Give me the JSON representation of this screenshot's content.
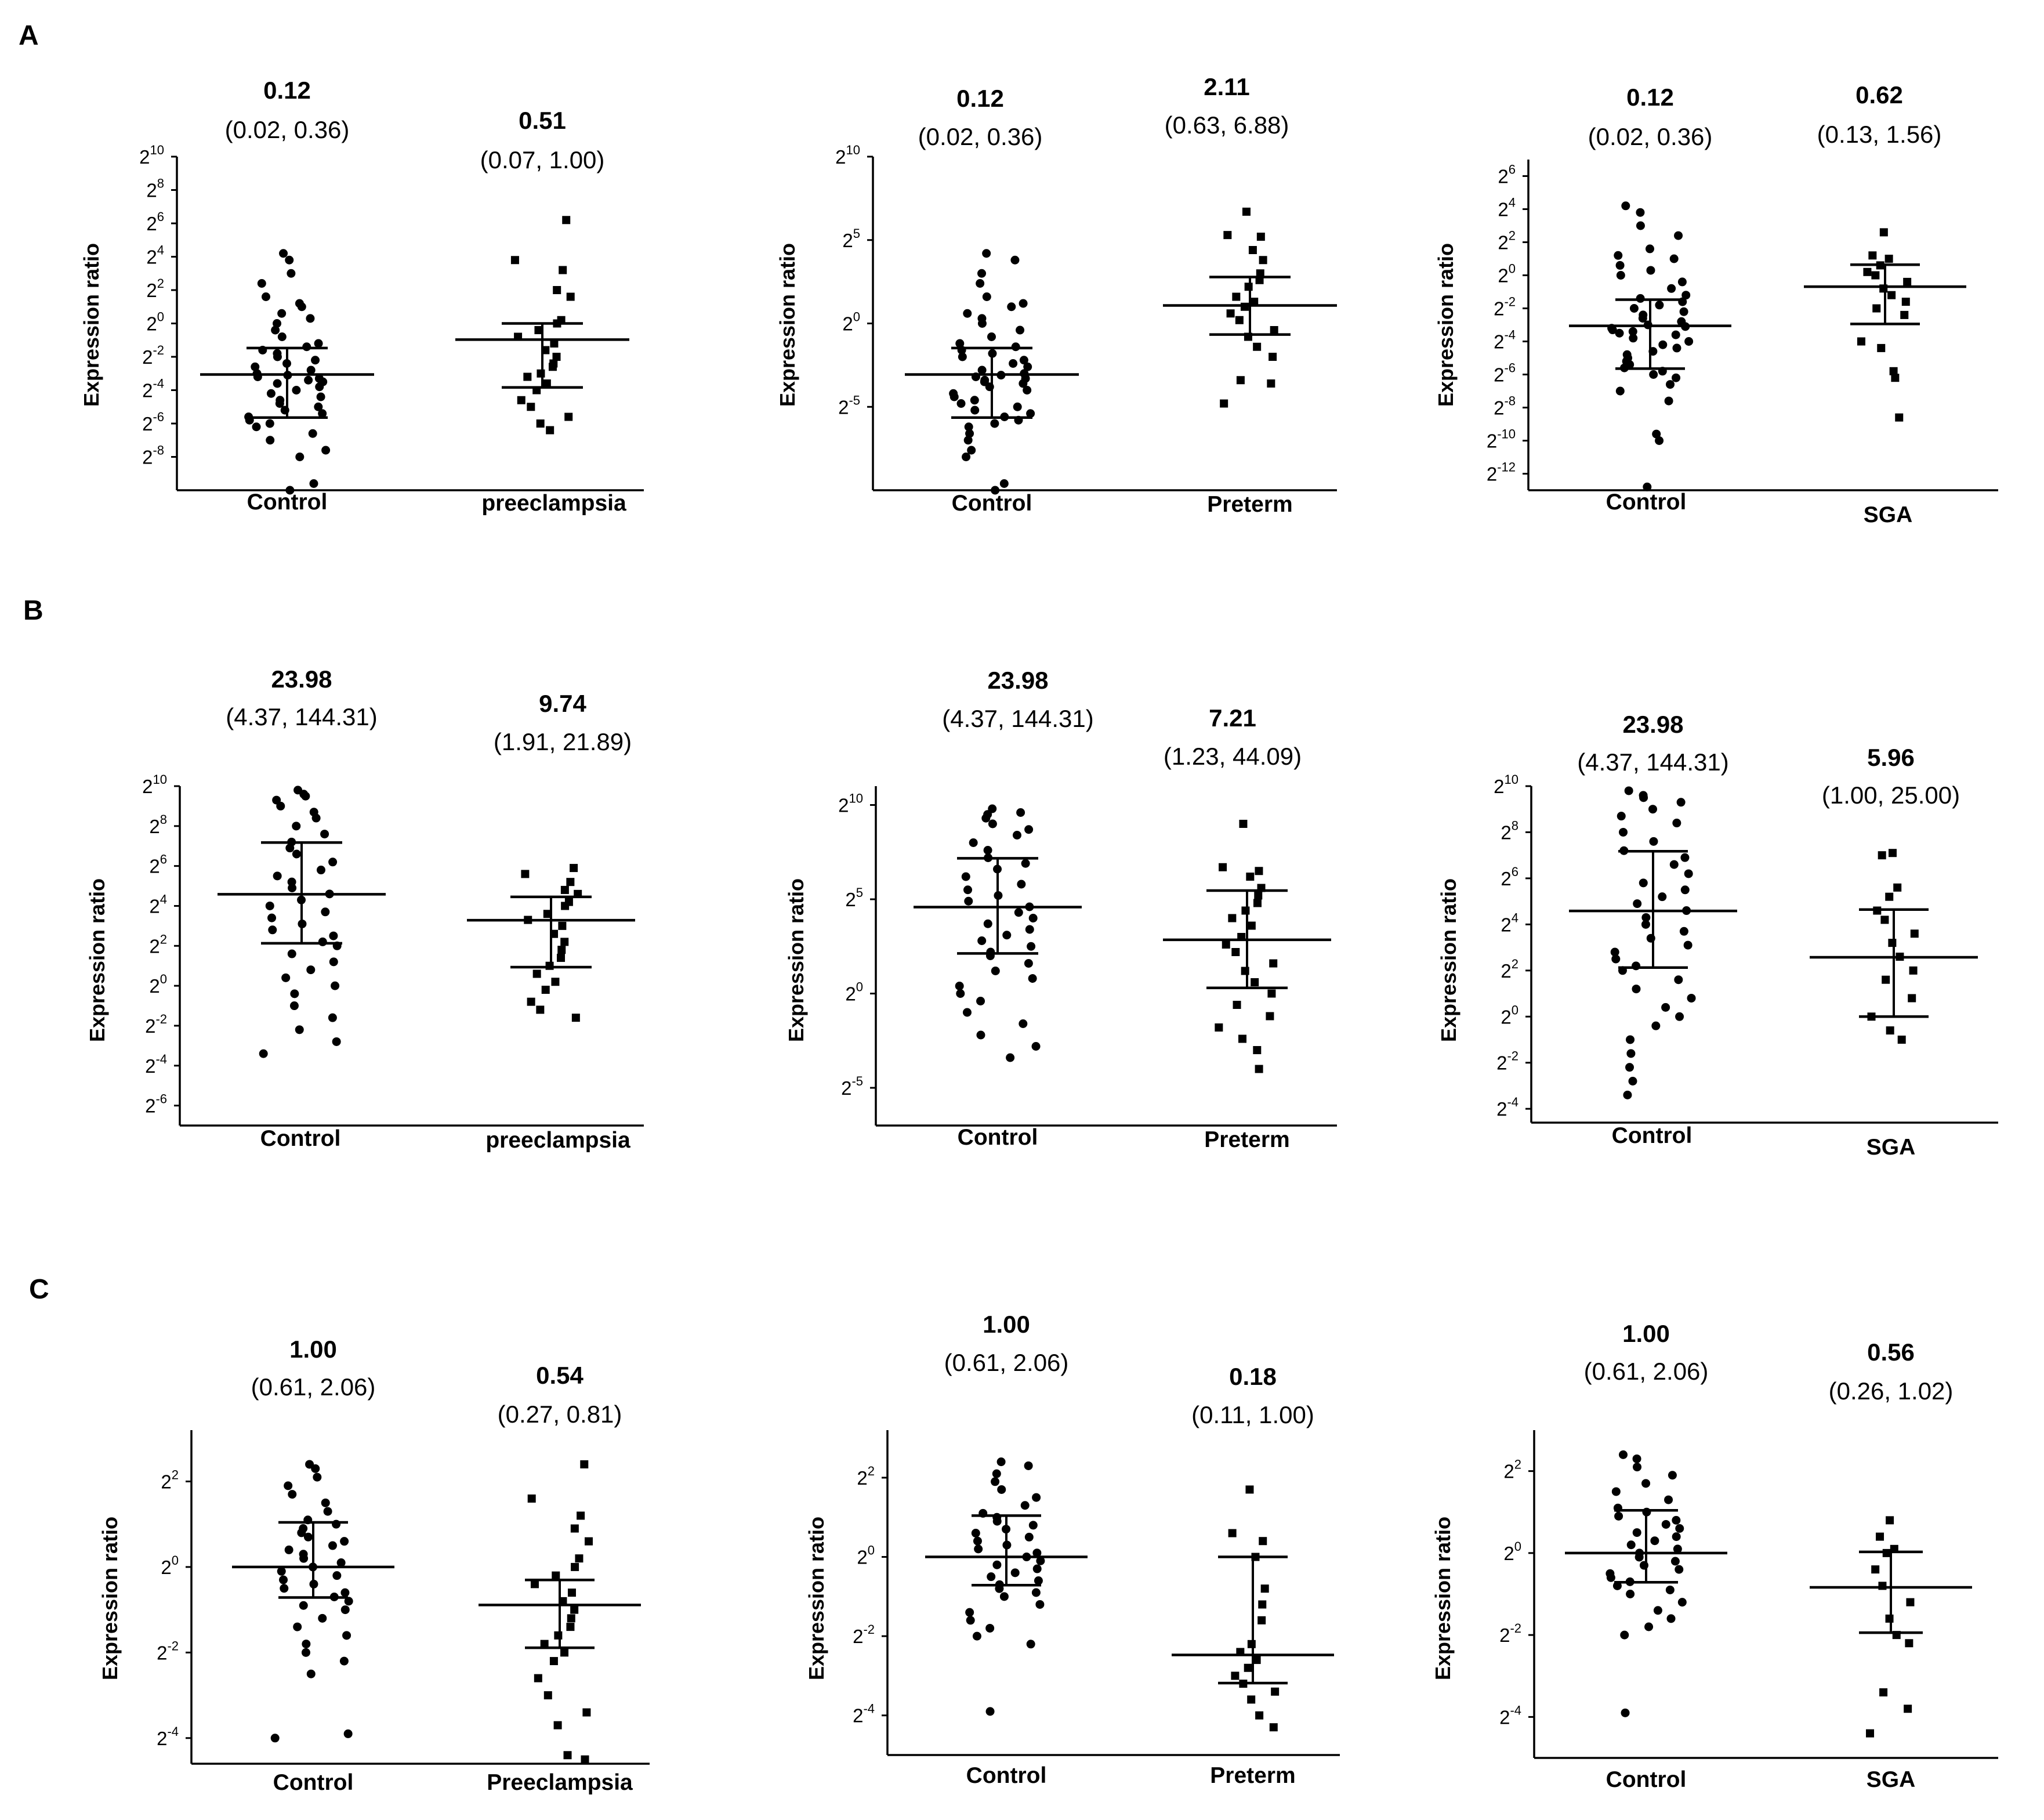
{
  "panels": {
    "A": "A",
    "B": "B",
    "C": "C"
  },
  "chart_data": [
    {
      "id": "A1",
      "type": "scatter",
      "ylabel": "Expression ratio",
      "y_scale": "log2",
      "ylim_exp": [
        -10,
        10
      ],
      "yticks_exp": [
        10,
        8,
        6,
        4,
        2,
        0,
        -2,
        -4,
        -6,
        -8
      ],
      "groups": [
        {
          "label": "Control",
          "median_label": "0.12",
          "iqr_label": "(0.02, 0.36)",
          "median": 0.12,
          "q1": 0.02,
          "q3": 0.36,
          "marker": "circle",
          "points_exp": [
            4.2,
            3.8,
            3.0,
            2.4,
            1.6,
            1.2,
            1.0,
            0.6,
            0.3,
            0.0,
            -0.4,
            -0.8,
            -1.2,
            -1.4,
            -1.6,
            -1.8,
            -2.0,
            -2.2,
            -2.4,
            -2.6,
            -2.8,
            -3.0,
            -3.1,
            -3.2,
            -3.3,
            -3.4,
            -3.5,
            -3.6,
            -3.8,
            -4.0,
            -4.2,
            -4.4,
            -4.6,
            -4.8,
            -5.0,
            -5.2,
            -5.4,
            -5.6,
            -5.8,
            -6.0,
            -6.2,
            -6.6,
            -7.0,
            -7.6,
            -8.0,
            -9.6,
            -10.0
          ]
        },
        {
          "label": "preeclampsia",
          "median_label": "0.51",
          "iqr_label": "(0.07, 1.00)",
          "median": 0.51,
          "q1": 0.07,
          "q3": 1.0,
          "marker": "square",
          "points_exp": [
            6.2,
            3.8,
            3.2,
            2.0,
            1.6,
            0.2,
            0.0,
            -0.4,
            -0.8,
            -1.2,
            -1.6,
            -2.0,
            -2.4,
            -2.6,
            -3.0,
            -3.2,
            -3.6,
            -4.0,
            -4.6,
            -5.0,
            -5.6,
            -6.0,
            -6.4
          ]
        }
      ]
    },
    {
      "id": "A2",
      "type": "scatter",
      "ylabel": "Expression ratio",
      "y_scale": "log2",
      "ylim_exp": [
        -10,
        10
      ],
      "yticks_exp": [
        10,
        5,
        0,
        -5
      ],
      "groups": [
        {
          "label": "Control",
          "median_label": "0.12",
          "iqr_label": "(0.02, 0.36)",
          "median": 0.12,
          "q1": 0.02,
          "q3": 0.36,
          "marker": "circle",
          "points_exp": [
            4.2,
            3.8,
            3.0,
            2.4,
            1.6,
            1.2,
            1.0,
            0.6,
            0.3,
            0.0,
            -0.4,
            -0.8,
            -1.2,
            -1.4,
            -1.6,
            -1.8,
            -2.0,
            -2.2,
            -2.4,
            -2.6,
            -2.8,
            -3.0,
            -3.1,
            -3.2,
            -3.3,
            -3.4,
            -3.5,
            -3.6,
            -3.8,
            -4.0,
            -4.2,
            -4.4,
            -4.6,
            -4.8,
            -5.0,
            -5.2,
            -5.4,
            -5.6,
            -5.8,
            -6.0,
            -6.2,
            -6.6,
            -7.0,
            -7.6,
            -8.0,
            -9.6,
            -10.0
          ]
        },
        {
          "label": "Preterm",
          "median_label": "2.11",
          "iqr_label": "(0.63, 6.88)",
          "median": 2.11,
          "q1": 0.63,
          "q3": 6.88,
          "marker": "square",
          "points_exp": [
            6.7,
            5.3,
            5.2,
            4.4,
            3.8,
            3.0,
            2.6,
            2.2,
            1.6,
            1.3,
            1.0,
            0.6,
            0.2,
            -0.4,
            -0.8,
            -1.4,
            -2.0,
            -3.4,
            -3.6,
            -4.8
          ]
        }
      ]
    },
    {
      "id": "A3",
      "type": "scatter",
      "ylabel": "Expression ratio",
      "y_scale": "log2",
      "ylim_exp": [
        -13,
        7
      ],
      "yticks_exp": [
        6,
        4,
        2,
        0,
        -2,
        -4,
        -6,
        -8,
        -10,
        -12
      ],
      "groups": [
        {
          "label": "Control",
          "median_label": "0.12",
          "iqr_label": "(0.02, 0.36)",
          "median": 0.12,
          "q1": 0.02,
          "q3": 0.36,
          "marker": "circle",
          "points_exp": [
            4.2,
            3.8,
            3.0,
            2.4,
            1.6,
            1.2,
            1.0,
            0.6,
            0.3,
            0.0,
            -0.4,
            -0.8,
            -1.2,
            -1.4,
            -1.6,
            -1.8,
            -2.0,
            -2.2,
            -2.4,
            -2.6,
            -2.8,
            -3.0,
            -3.1,
            -3.2,
            -3.3,
            -3.4,
            -3.5,
            -3.6,
            -3.8,
            -4.0,
            -4.2,
            -4.4,
            -4.6,
            -4.8,
            -5.0,
            -5.2,
            -5.4,
            -5.6,
            -5.8,
            -6.0,
            -6.2,
            -6.6,
            -7.0,
            -7.6,
            -9.6,
            -10.0,
            -12.8
          ]
        },
        {
          "label": "SGA",
          "median_label": "0.62",
          "iqr_label": "(0.13, 1.56)",
          "median": 0.62,
          "q1": 0.13,
          "q3": 1.56,
          "marker": "square",
          "points_exp": [
            2.6,
            1.2,
            1.0,
            0.6,
            0.2,
            0.0,
            -0.4,
            -0.8,
            -1.2,
            -1.6,
            -2.0,
            -2.4,
            -4.0,
            -4.4,
            -5.8,
            -6.2,
            -8.6
          ]
        }
      ]
    },
    {
      "id": "B1",
      "type": "scatter",
      "ylabel": "Expression ratio",
      "y_scale": "log2",
      "ylim_exp": [
        -7,
        10
      ],
      "yticks_exp": [
        10,
        8,
        6,
        4,
        2,
        0,
        -2,
        -4,
        -6
      ],
      "groups": [
        {
          "label": "Control",
          "median_label": "23.98",
          "iqr_label": "(4.37, 144.31)",
          "median": 23.98,
          "q1": 4.37,
          "q3": 144.31,
          "marker": "circle",
          "points_exp": [
            9.8,
            9.6,
            9.5,
            9.3,
            9.0,
            8.7,
            8.4,
            8.0,
            7.6,
            7.2,
            6.9,
            6.6,
            6.2,
            5.8,
            5.5,
            5.2,
            4.9,
            4.6,
            4.3,
            4.0,
            3.7,
            3.4,
            3.1,
            2.8,
            2.5,
            2.2,
            2.0,
            1.6,
            1.2,
            0.8,
            0.4,
            0.0,
            -0.4,
            -1.0,
            -1.6,
            -2.2,
            -2.8,
            -3.4
          ]
        },
        {
          "label": "preeclampsia",
          "median_label": "9.74",
          "iqr_label": "(1.91, 21.89)",
          "median": 9.74,
          "q1": 1.91,
          "q3": 21.89,
          "marker": "square",
          "points_exp": [
            5.9,
            5.6,
            5.2,
            4.8,
            4.6,
            4.2,
            4.0,
            3.6,
            3.3,
            3.0,
            2.6,
            2.2,
            1.8,
            1.4,
            1.0,
            0.6,
            0.2,
            -0.2,
            -0.8,
            -1.2,
            -1.6
          ]
        }
      ]
    },
    {
      "id": "B2",
      "type": "scatter",
      "ylabel": "Expression ratio",
      "y_scale": "log2",
      "ylim_exp": [
        -7,
        11
      ],
      "yticks_exp": [
        10,
        5,
        0,
        -5
      ],
      "groups": [
        {
          "label": "Control",
          "median_label": "23.98",
          "iqr_label": "(4.37, 144.31)",
          "median": 23.98,
          "q1": 4.37,
          "q3": 144.31,
          "marker": "circle",
          "points_exp": [
            9.8,
            9.6,
            9.5,
            9.3,
            9.0,
            8.7,
            8.4,
            8.0,
            7.6,
            7.2,
            6.9,
            6.6,
            6.2,
            5.8,
            5.5,
            5.2,
            4.9,
            4.6,
            4.3,
            4.0,
            3.7,
            3.4,
            3.1,
            2.8,
            2.5,
            2.2,
            2.0,
            1.6,
            1.2,
            0.8,
            0.4,
            0.0,
            -0.4,
            -1.0,
            -1.6,
            -2.2,
            -2.8,
            -3.4
          ]
        },
        {
          "label": "Preterm",
          "median_label": "7.21",
          "iqr_label": "(1.23, 44.09)",
          "median": 7.21,
          "q1": 1.23,
          "q3": 44.09,
          "marker": "square",
          "points_exp": [
            9.0,
            6.7,
            6.5,
            6.2,
            5.6,
            5.2,
            4.8,
            4.4,
            4.0,
            3.6,
            3.0,
            2.6,
            2.2,
            1.6,
            1.2,
            0.6,
            0.0,
            -0.6,
            -1.2,
            -1.8,
            -2.4,
            -3.0,
            -4.0
          ]
        }
      ]
    },
    {
      "id": "B3",
      "type": "scatter",
      "ylabel": "Expression ratio",
      "y_scale": "log2",
      "ylim_exp": [
        -4.6,
        10
      ],
      "yticks_exp": [
        10,
        8,
        6,
        4,
        2,
        0,
        -2,
        -4
      ],
      "groups": [
        {
          "label": "Control",
          "median_label": "23.98",
          "iqr_label": "(4.37, 144.31)",
          "median": 23.98,
          "q1": 4.37,
          "q3": 144.31,
          "marker": "circle",
          "points_exp": [
            9.8,
            9.6,
            9.5,
            9.3,
            9.0,
            8.7,
            8.4,
            8.0,
            7.6,
            7.2,
            6.9,
            6.6,
            6.2,
            5.8,
            5.5,
            5.2,
            4.9,
            4.6,
            4.3,
            4.0,
            3.7,
            3.4,
            3.1,
            2.8,
            2.5,
            2.2,
            2.0,
            1.6,
            1.2,
            0.8,
            0.4,
            0.0,
            -0.4,
            -1.0,
            -1.6,
            -2.2,
            -2.8,
            -3.4
          ]
        },
        {
          "label": "SGA",
          "median_label": "5.96",
          "iqr_label": "(1.00, 25.00)",
          "median": 5.96,
          "q1": 1.0,
          "q3": 25.0,
          "marker": "square",
          "points_exp": [
            7.1,
            7.0,
            5.6,
            5.2,
            4.6,
            4.2,
            3.6,
            3.2,
            2.6,
            2.0,
            1.6,
            0.8,
            0.0,
            -0.6,
            -1.0
          ]
        }
      ]
    },
    {
      "id": "C1",
      "type": "scatter",
      "ylabel": "Expression ratio",
      "y_scale": "log2",
      "ylim_exp": [
        -4.6,
        3.2
      ],
      "yticks_exp": [
        2,
        0,
        -2,
        -4
      ],
      "groups": [
        {
          "label": "Control",
          "median_label": "1.00",
          "iqr_label": "(0.61, 2.06)",
          "median": 1.0,
          "q1": 0.61,
          "q3": 2.06,
          "marker": "circle",
          "points_exp": [
            2.4,
            2.3,
            2.1,
            1.9,
            1.7,
            1.5,
            1.3,
            1.1,
            1.0,
            0.9,
            0.8,
            0.7,
            0.6,
            0.5,
            0.4,
            0.3,
            0.2,
            0.1,
            0.0,
            -0.1,
            -0.2,
            -0.3,
            -0.4,
            -0.5,
            -0.6,
            -0.7,
            -0.8,
            -0.9,
            -1.0,
            -1.2,
            -1.4,
            -1.6,
            -1.8,
            -2.0,
            -2.2,
            -2.5,
            -3.9,
            -4.0
          ]
        },
        {
          "label": "Preeclampsia",
          "median_label": "0.54",
          "iqr_label": "(0.27, 0.81)",
          "median": 0.54,
          "q1": 0.27,
          "q3": 0.81,
          "marker": "square",
          "points_exp": [
            2.4,
            1.6,
            1.2,
            0.9,
            0.6,
            0.2,
            0.0,
            -0.2,
            -0.4,
            -0.6,
            -0.8,
            -1.0,
            -1.2,
            -1.4,
            -1.6,
            -1.8,
            -2.0,
            -2.2,
            -2.6,
            -3.0,
            -3.4,
            -3.7,
            -4.4,
            -4.5
          ]
        }
      ]
    },
    {
      "id": "C2",
      "type": "scatter",
      "ylabel": "Expression ratio",
      "y_scale": "log2",
      "ylim_exp": [
        -5,
        3.2
      ],
      "yticks_exp": [
        2,
        0,
        -2,
        -4
      ],
      "groups": [
        {
          "label": "Control",
          "median_label": "1.00",
          "iqr_label": "(0.61, 2.06)",
          "median": 1.0,
          "q1": 0.61,
          "q3": 2.06,
          "marker": "circle",
          "points_exp": [
            2.4,
            2.3,
            2.1,
            1.9,
            1.7,
            1.5,
            1.3,
            1.1,
            1.0,
            0.9,
            0.8,
            0.7,
            0.6,
            0.5,
            0.4,
            0.3,
            0.2,
            0.1,
            0.0,
            -0.1,
            -0.2,
            -0.3,
            -0.4,
            -0.5,
            -0.6,
            -0.7,
            -0.8,
            -0.9,
            -1.0,
            -1.2,
            -1.4,
            -1.6,
            -1.8,
            -2.0,
            -2.2,
            -3.9
          ]
        },
        {
          "label": "Preterm",
          "median_label": "0.18",
          "iqr_label": "(0.11, 1.00)",
          "median": 0.18,
          "q1": 0.11,
          "q3": 1.0,
          "marker": "square",
          "points_exp": [
            1.7,
            0.6,
            0.4,
            0.0,
            -0.8,
            -1.2,
            -1.6,
            -2.2,
            -2.4,
            -2.6,
            -2.8,
            -3.0,
            -3.2,
            -3.4,
            -3.6,
            -4.0,
            -4.3
          ]
        }
      ]
    },
    {
      "id": "C3",
      "type": "scatter",
      "ylabel": "Expression ratio",
      "y_scale": "log2",
      "ylim_exp": [
        -5,
        3
      ],
      "yticks_exp": [
        2,
        0,
        -2,
        -4
      ],
      "groups": [
        {
          "label": "Control",
          "median_label": "1.00",
          "iqr_label": "(0.61, 2.06)",
          "median": 1.0,
          "q1": 0.61,
          "q3": 2.06,
          "marker": "circle",
          "points_exp": [
            2.4,
            2.3,
            2.1,
            1.9,
            1.7,
            1.5,
            1.3,
            1.1,
            1.0,
            0.9,
            0.8,
            0.7,
            0.6,
            0.5,
            0.4,
            0.3,
            0.2,
            0.1,
            0.0,
            -0.1,
            -0.2,
            -0.3,
            -0.4,
            -0.5,
            -0.6,
            -0.7,
            -0.8,
            -0.9,
            -1.0,
            -1.2,
            -1.4,
            -1.6,
            -1.8,
            -2.0,
            -3.9
          ]
        },
        {
          "label": "SGA",
          "median_label": "0.56",
          "iqr_label": "(0.26, 1.02)",
          "median": 0.56,
          "q1": 0.26,
          "q3": 1.02,
          "marker": "square",
          "points_exp": [
            0.8,
            0.4,
            0.1,
            0.0,
            -0.4,
            -0.8,
            -1.2,
            -1.6,
            -2.0,
            -2.2,
            -3.4,
            -3.8,
            -4.4
          ]
        }
      ]
    }
  ]
}
